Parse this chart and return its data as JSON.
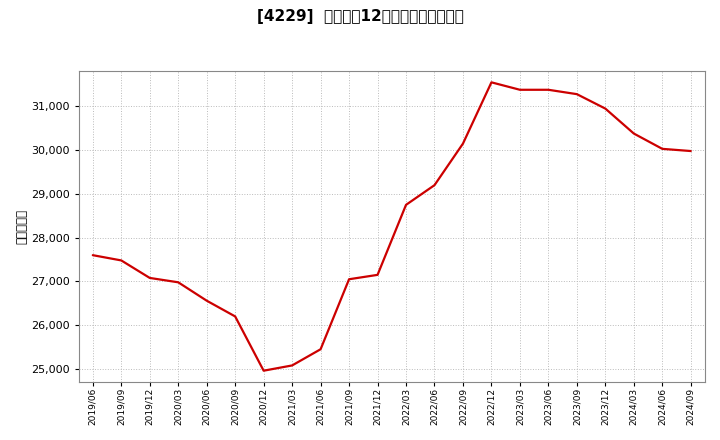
{
  "title": "[4229]  売上高の12か月移動合計の推移",
  "ylabel": "（百万円）",
  "line_color": "#cc0000",
  "background_color": "#ffffff",
  "plot_bg_color": "#ffffff",
  "grid_color": "#bbbbbb",
  "ylim": [
    24700,
    31800
  ],
  "yticks": [
    25000,
    26000,
    27000,
    28000,
    29000,
    30000,
    31000
  ],
  "dates": [
    "2019/06",
    "2019/09",
    "2019/12",
    "2020/03",
    "2020/06",
    "2020/09",
    "2020/12",
    "2021/03",
    "2021/06",
    "2021/09",
    "2021/12",
    "2022/03",
    "2022/06",
    "2022/09",
    "2022/12",
    "2023/03",
    "2023/06",
    "2023/09",
    "2023/12",
    "2024/03",
    "2024/06",
    "2024/09"
  ],
  "values": [
    27600,
    27480,
    27080,
    26980,
    26560,
    26200,
    24960,
    25080,
    25450,
    27050,
    27150,
    28750,
    29200,
    30150,
    31550,
    31380,
    31380,
    31280,
    30950,
    30380,
    30030,
    29980
  ]
}
